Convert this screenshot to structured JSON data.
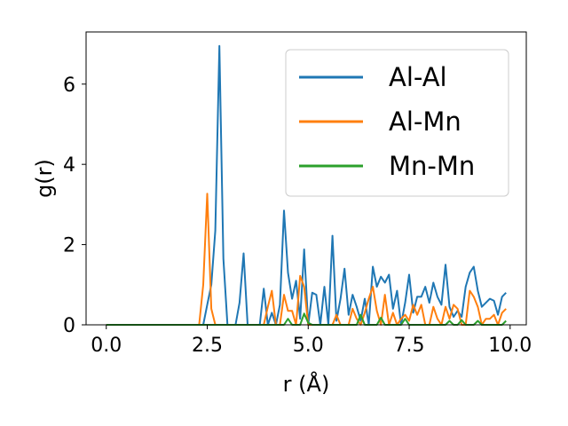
{
  "chart_data": {
    "type": "line",
    "title": "",
    "xlabel": "r (Å)",
    "ylabel": "g(r)",
    "xlim": [
      -0.5,
      10.4
    ],
    "ylim": [
      0,
      7.3
    ],
    "xticks": [
      0.0,
      2.5,
      5.0,
      7.5,
      10.0
    ],
    "xtick_labels": [
      "0.0",
      "2.5",
      "5.0",
      "7.5",
      "10.0"
    ],
    "yticks": [
      0,
      2,
      4,
      6
    ],
    "ytick_labels": [
      "0",
      "2",
      "4",
      "6"
    ],
    "grid": false,
    "legend_position": "upper-right",
    "x": [
      0.0,
      0.1,
      0.2,
      0.3,
      0.4,
      0.5,
      0.6,
      0.7,
      0.8,
      0.9,
      1.0,
      1.1,
      1.2,
      1.3,
      1.4,
      1.5,
      1.6,
      1.7,
      1.8,
      1.9,
      2.0,
      2.1,
      2.2,
      2.3,
      2.4,
      2.5,
      2.6,
      2.7,
      2.8,
      2.9,
      3.0,
      3.1,
      3.2,
      3.3,
      3.4,
      3.5,
      3.6,
      3.7,
      3.8,
      3.9,
      4.0,
      4.1,
      4.2,
      4.3,
      4.4,
      4.5,
      4.6,
      4.7,
      4.8,
      4.9,
      5.0,
      5.1,
      5.2,
      5.3,
      5.4,
      5.5,
      5.6,
      5.7,
      5.8,
      5.9,
      6.0,
      6.1,
      6.2,
      6.3,
      6.4,
      6.5,
      6.6,
      6.7,
      6.8,
      6.9,
      7.0,
      7.1,
      7.2,
      7.3,
      7.4,
      7.5,
      7.6,
      7.7,
      7.8,
      7.9,
      8.0,
      8.1,
      8.2,
      8.3,
      8.4,
      8.5,
      8.6,
      8.7,
      8.8,
      8.9,
      9.0,
      9.1,
      9.2,
      9.3,
      9.4,
      9.5,
      9.6,
      9.7,
      9.8,
      9.9
    ],
    "series": [
      {
        "name": "Al-Al",
        "color": "#1f77b4",
        "values": [
          0,
          0,
          0,
          0,
          0,
          0,
          0,
          0,
          0,
          0,
          0,
          0,
          0,
          0,
          0,
          0,
          0,
          0,
          0,
          0,
          0,
          0,
          0,
          0,
          0,
          0.5,
          1.0,
          2.35,
          6.95,
          1.65,
          0,
          0,
          0,
          0.55,
          1.78,
          0,
          0,
          0,
          0,
          0.9,
          0,
          0.3,
          0,
          0.5,
          2.85,
          1.3,
          0.65,
          1.1,
          0.15,
          1.88,
          0,
          0.8,
          0.75,
          0,
          0.95,
          0,
          2.22,
          0.1,
          0.65,
          1.4,
          0.25,
          0.75,
          0.45,
          0.1,
          0.65,
          0,
          1.45,
          0.95,
          1.2,
          1.05,
          1.25,
          0.4,
          0.85,
          0,
          0.55,
          1.25,
          0.3,
          0.7,
          0.7,
          0.95,
          0.55,
          1.05,
          0.7,
          0.5,
          1.5,
          0.45,
          0.2,
          0.35,
          0.2,
          0.95,
          1.3,
          1.45,
          0.85,
          0.45,
          0.55,
          0.65,
          0.6,
          0.25,
          0.7,
          0.8
        ]
      },
      {
        "name": "Al-Mn",
        "color": "#ff7f0e",
        "values": [
          0,
          0,
          0,
          0,
          0,
          0,
          0,
          0,
          0,
          0,
          0,
          0,
          0,
          0,
          0,
          0,
          0,
          0,
          0,
          0,
          0,
          0,
          0,
          0,
          1.0,
          3.27,
          0.4,
          0,
          0,
          0,
          0,
          0,
          0,
          0,
          0,
          0,
          0,
          0,
          0,
          0,
          0.45,
          0.85,
          0,
          0,
          0.75,
          0.35,
          0.35,
          0,
          1.22,
          0.95,
          0,
          0,
          0,
          0,
          0,
          0,
          0,
          0.25,
          0,
          0,
          0,
          0.4,
          0.15,
          0,
          0.3,
          0.65,
          0.95,
          0.35,
          0,
          0.75,
          0,
          0.3,
          0,
          0.15,
          0.25,
          0.1,
          0.5,
          0.25,
          0.5,
          0,
          0,
          0.45,
          0.15,
          0,
          0.45,
          0.15,
          0.5,
          0.4,
          0,
          0,
          0.85,
          0.7,
          0.45,
          0,
          0.15,
          0.15,
          0.25,
          0,
          0.3,
          0.4
        ]
      },
      {
        "name": "Mn-Mn",
        "color": "#2ca02c",
        "values": [
          0,
          0,
          0,
          0,
          0,
          0,
          0,
          0,
          0,
          0,
          0,
          0,
          0,
          0,
          0,
          0,
          0,
          0,
          0,
          0,
          0,
          0,
          0,
          0,
          0,
          0,
          0,
          0,
          0,
          0,
          0,
          0,
          0,
          0,
          0,
          0,
          0,
          0,
          0,
          0,
          0,
          0,
          0,
          0,
          0,
          0.15,
          0,
          0,
          0,
          0.28,
          0.05,
          0,
          0,
          0,
          0,
          0,
          0,
          0,
          0,
          0,
          0,
          0,
          0,
          0.25,
          0,
          0,
          0,
          0,
          0.18,
          0,
          0,
          0,
          0,
          0,
          0.15,
          0,
          0,
          0,
          0,
          0,
          0,
          0,
          0,
          0,
          0,
          0.1,
          0,
          0,
          0.12,
          0,
          0,
          0,
          0.1,
          0,
          0,
          0,
          0,
          0,
          0,
          0.1
        ]
      }
    ]
  }
}
